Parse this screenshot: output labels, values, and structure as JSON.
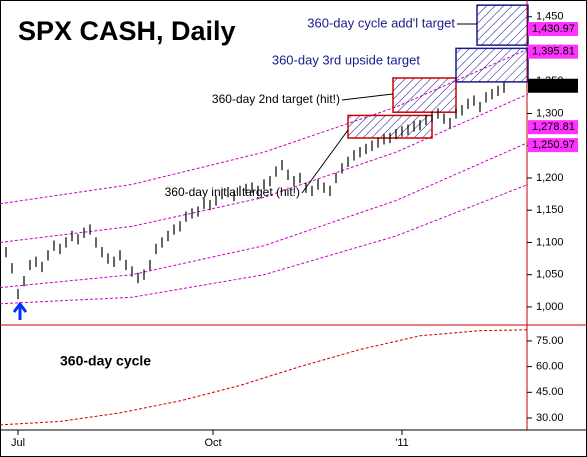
{
  "chart_data": {
    "type": "ohlc",
    "title": "SPX CASH, Daily",
    "color": "#000000",
    "xlim": [
      0,
      176
    ],
    "xticks": [
      {
        "value": 6,
        "label": "Jul"
      },
      {
        "value": 71,
        "label": "Oct"
      },
      {
        "value": 134,
        "label": "'11"
      }
    ],
    "ylim": [
      972,
      1476
    ],
    "yticks": [
      {
        "value": 1000,
        "label": "1,000"
      },
      {
        "value": 1050,
        "label": "1,050"
      },
      {
        "value": 1100,
        "label": "1,100"
      },
      {
        "value": 1150,
        "label": "1,150"
      },
      {
        "value": 1200,
        "label": "1,200"
      },
      {
        "value": 1250,
        "label": "1,250"
      },
      {
        "value": 1300,
        "label": "1,300"
      },
      {
        "value": 1350,
        "label": "1,350"
      },
      {
        "value": 1400,
        "label": "1,400"
      },
      {
        "value": 1450,
        "label": "1,450"
      }
    ],
    "y2lim": [
      23,
      84.3
    ],
    "y2ticks": [
      {
        "value": 30,
        "label": "30.00"
      },
      {
        "value": 45,
        "label": "45.00"
      },
      {
        "value": 60,
        "label": "60.00"
      },
      {
        "value": 75,
        "label": "75.00"
      }
    ],
    "x": [
      2,
      4,
      6,
      8,
      10,
      12,
      14,
      16,
      18,
      20,
      22,
      24,
      26,
      28,
      30,
      32,
      34,
      36,
      38,
      40,
      42,
      44,
      46,
      48,
      50,
      52,
      54,
      56,
      58,
      60,
      62,
      64,
      66,
      68,
      70,
      72,
      74,
      76,
      78,
      80,
      82,
      84,
      86,
      88,
      90,
      92,
      94,
      96,
      98,
      100,
      102,
      104,
      106,
      108,
      110,
      112,
      114,
      116,
      118,
      120,
      122,
      124,
      126,
      128,
      130,
      132,
      134,
      136,
      138,
      140,
      142,
      144,
      146,
      148,
      150,
      152,
      154,
      156,
      158,
      160,
      162,
      164,
      166,
      168
    ],
    "high": [
      1093,
      1068,
      1028,
      1048,
      1073,
      1078,
      1070,
      1088,
      1103,
      1098,
      1108,
      1118,
      1113,
      1123,
      1128,
      1108,
      1093,
      1083,
      1078,
      1088,
      1073,
      1063,
      1053,
      1058,
      1073,
      1098,
      1108,
      1118,
      1128,
      1133,
      1148,
      1153,
      1156,
      1168,
      1166,
      1173,
      1183,
      1186,
      1180,
      1188,
      1191,
      1193,
      1188,
      1198,
      1203,
      1218,
      1228,
      1213,
      1203,
      1208,
      1193,
      1188,
      1198,
      1193,
      1188,
      1208,
      1223,
      1233,
      1243,
      1248,
      1253,
      1258,
      1263,
      1268,
      1270,
      1276,
      1280,
      1283,
      1288,
      1290,
      1298,
      1303,
      1308,
      1300,
      1293,
      1308,
      1313,
      1323,
      1328,
      1318,
      1333,
      1338,
      1343,
      1348
    ],
    "low": [
      1077,
      1052,
      1012,
      1032,
      1057,
      1062,
      1054,
      1072,
      1087,
      1082,
      1092,
      1102,
      1097,
      1107,
      1112,
      1092,
      1077,
      1067,
      1062,
      1072,
      1057,
      1047,
      1037,
      1042,
      1057,
      1082,
      1092,
      1102,
      1112,
      1117,
      1132,
      1137,
      1140,
      1152,
      1150,
      1157,
      1167,
      1170,
      1164,
      1172,
      1175,
      1177,
      1172,
      1182,
      1187,
      1202,
      1212,
      1197,
      1187,
      1192,
      1177,
      1172,
      1182,
      1177,
      1172,
      1192,
      1207,
      1217,
      1227,
      1232,
      1237,
      1242,
      1247,
      1252,
      1254,
      1260,
      1264,
      1267,
      1272,
      1274,
      1282,
      1287,
      1292,
      1284,
      1277,
      1292,
      1297,
      1307,
      1312,
      1302,
      1317,
      1322,
      1327,
      1332
    ],
    "bands": {
      "color": "#cc00cc",
      "x": [
        0,
        44,
        88,
        132,
        176
      ],
      "series": [
        {
          "values": [
            1160,
            1190,
            1240,
            1310,
            1400
          ]
        },
        {
          "values": [
            1100,
            1125,
            1170,
            1240,
            1330
          ]
        },
        {
          "values": [
            1030,
            1050,
            1095,
            1165,
            1255
          ]
        },
        {
          "values": [
            1005,
            1015,
            1050,
            1110,
            1190
          ]
        }
      ]
    },
    "cycle": {
      "label": "360-day cycle",
      "axis": "y2",
      "color": "#cc0000",
      "x": [
        0,
        20,
        40,
        60,
        80,
        100,
        120,
        140,
        160,
        176
      ],
      "values": [
        26,
        28,
        33,
        40,
        49,
        60,
        70,
        78,
        81,
        81.5
      ]
    },
    "targets": [
      {
        "label": "360-day initial target (hit!)",
        "text_color": "#000000",
        "border": "#cc0000",
        "x": [
          116,
          144
        ],
        "y": [
          1262,
          1297
        ]
      },
      {
        "label": "360-day 2nd target (hit!)",
        "text_color": "#000000",
        "border": "#cc0000",
        "x": [
          131,
          152
        ],
        "y": [
          1302,
          1355
        ]
      },
      {
        "label": "360-day 3rd upside target",
        "text_color": "#1a1a8c",
        "border": "#1a1a8c",
        "x": [
          152,
          176
        ],
        "y": [
          1349,
          1401
        ]
      },
      {
        "label": "360-day cycle add'l target",
        "text_color": "#1a1a8c",
        "border": "#1a1a8c",
        "x": [
          159,
          176
        ],
        "y": [
          1406,
          1468
        ]
      }
    ],
    "price_labels": [
      {
        "value": 1430.97,
        "label": "1,430.97",
        "color": "#ff33ff"
      },
      {
        "value": 1395.81,
        "label": "1,395.81",
        "color": "#ff33ff"
      },
      {
        "value": 1343.01,
        "label": "1,343.01",
        "color": "#000000"
      },
      {
        "value": 1278.81,
        "label": "1,278.81",
        "color": "#ff33ff"
      },
      {
        "value": 1250.97,
        "label": "1,250.97",
        "color": "#ff33ff"
      }
    ]
  }
}
